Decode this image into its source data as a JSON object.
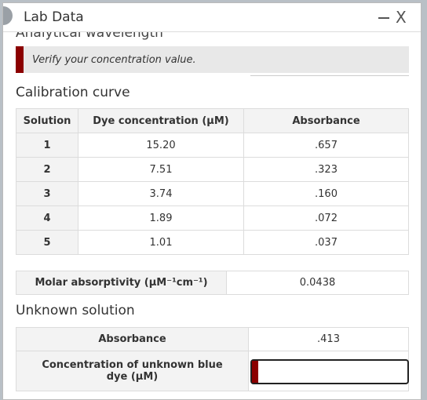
{
  "window": {
    "title": "Lab Data",
    "close": "X"
  },
  "scrolled_label": "Analytical wavelength",
  "alert": "Verify your concentration value.",
  "calibration": {
    "title": "Calibration curve",
    "headers": [
      "Solution",
      "Dye concentration (μM)",
      "Absorbance"
    ],
    "rows": [
      [
        "1",
        "15.20",
        ".657"
      ],
      [
        "2",
        "7.51",
        ".323"
      ],
      [
        "3",
        "3.74",
        ".160"
      ],
      [
        "4",
        "1.89",
        ".072"
      ],
      [
        "5",
        "1.01",
        ".037"
      ]
    ]
  },
  "molar": {
    "label": "Molar absorptivity (μM⁻¹cm⁻¹)",
    "value": "0.0438"
  },
  "unknown": {
    "title": "Unknown solution",
    "rows": [
      [
        "Absorbance",
        ".413"
      ],
      [
        "Concentration of unknown blue dye (μM)",
        ""
      ]
    ]
  }
}
